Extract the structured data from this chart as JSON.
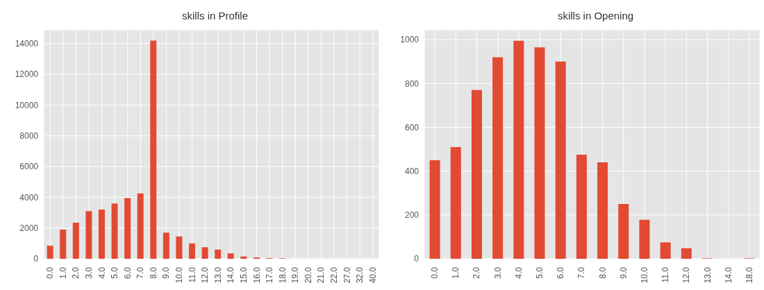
{
  "chart_data": [
    {
      "type": "bar",
      "title": "skills in Profile",
      "categories": [
        "0.0",
        "1.0",
        "2.0",
        "3.0",
        "4.0",
        "5.0",
        "6.0",
        "7.0",
        "8.0",
        "9.0",
        "10.0",
        "11.0",
        "12.0",
        "13.0",
        "14.0",
        "15.0",
        "16.0",
        "17.0",
        "18.0",
        "19.0",
        "20.0",
        "21.0",
        "22.0",
        "27.0",
        "32.0",
        "40.0"
      ],
      "values": [
        850,
        1900,
        2350,
        3100,
        3200,
        3600,
        3950,
        4250,
        14200,
        1700,
        1450,
        1000,
        750,
        600,
        350,
        150,
        80,
        40,
        30,
        0,
        0,
        0,
        0,
        0,
        0,
        0
      ],
      "color": "#e24a33",
      "ylim": [
        0,
        14900
      ],
      "yticks": [
        0,
        2000,
        4000,
        6000,
        8000,
        10000,
        12000,
        14000
      ],
      "grid": true
    },
    {
      "type": "bar",
      "title": "skills in Opening",
      "categories": [
        "0.0",
        "1.0",
        "2.0",
        "3.0",
        "4.0",
        "5.0",
        "6.0",
        "7.0",
        "8.0",
        "9.0",
        "10.0",
        "11.0",
        "12.0",
        "13.0",
        "14.0",
        "18.0"
      ],
      "values": [
        450,
        510,
        770,
        920,
        995,
        965,
        900,
        475,
        440,
        250,
        178,
        75,
        48,
        2,
        0,
        2
      ],
      "color": "#e24a33",
      "ylim": [
        0,
        1045
      ],
      "yticks": [
        0,
        200,
        400,
        600,
        800,
        1000
      ],
      "grid": true
    }
  ]
}
